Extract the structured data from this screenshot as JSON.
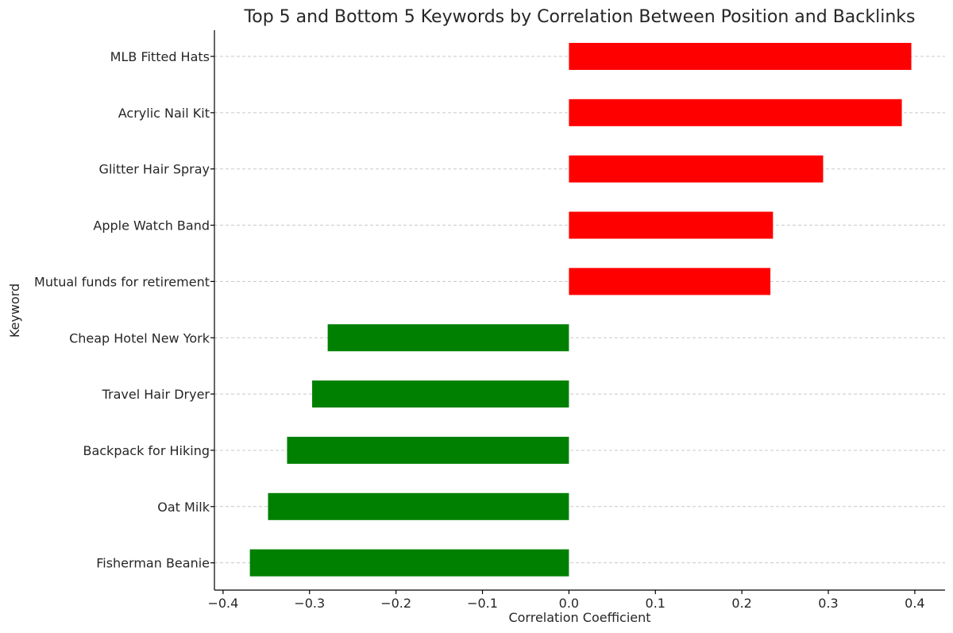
{
  "chart_data": {
    "type": "bar",
    "orientation": "horizontal",
    "title": "Top 5 and Bottom 5 Keywords by Correlation Between Position and Backlinks",
    "xlabel": "Correlation Coefficient",
    "ylabel": "Keyword",
    "xlim": [
      -0.41,
      0.435
    ],
    "xticks": [
      -0.4,
      -0.3,
      -0.2,
      -0.1,
      0.0,
      0.1,
      0.2,
      0.3,
      0.4
    ],
    "xtick_labels": [
      "−0.4",
      "−0.3",
      "−0.2",
      "−0.1",
      "0.0",
      "0.1",
      "0.2",
      "0.3",
      "0.4"
    ],
    "grid": "horizontal dashed",
    "categories": [
      "MLB Fitted Hats",
      "Acrylic Nail Kit",
      "Glitter Hair Spray",
      "Apple Watch Band",
      "Mutual funds for retirement",
      "Cheap Hotel New York",
      "Travel Hair Dryer",
      "Backpack for Hiking",
      "Oat Milk",
      "Fisherman Beanie"
    ],
    "values": [
      0.396,
      0.385,
      0.294,
      0.236,
      0.233,
      -0.279,
      -0.297,
      -0.326,
      -0.348,
      -0.369
    ],
    "bar_colors": [
      "#ff0000",
      "#ff0000",
      "#ff0000",
      "#ff0000",
      "#ff0000",
      "#008000",
      "#008000",
      "#008000",
      "#008000",
      "#008000"
    ]
  }
}
